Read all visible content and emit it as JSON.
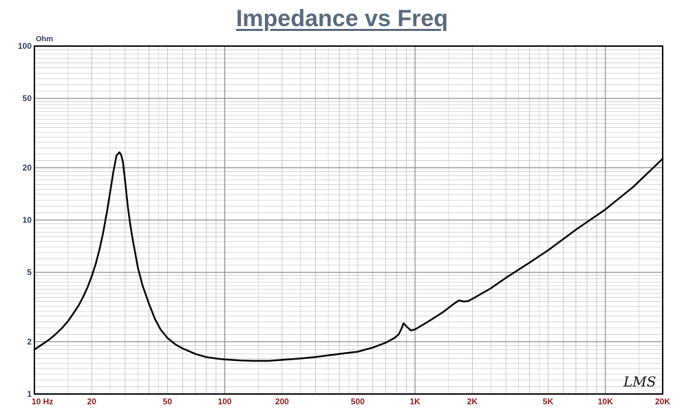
{
  "chart_data": {
    "type": "line",
    "title": "Impedance vs Freq",
    "y_unit": "Ohm",
    "x_scale": "log",
    "y_scale": "log",
    "xlim": [
      10,
      20000
    ],
    "ylim": [
      1,
      100
    ],
    "grid": true,
    "x_ticks": [
      {
        "value": 10,
        "label": "10  Hz"
      },
      {
        "value": 20,
        "label": "20"
      },
      {
        "value": 50,
        "label": "50"
      },
      {
        "value": 100,
        "label": "100"
      },
      {
        "value": 200,
        "label": "200"
      },
      {
        "value": 500,
        "label": "500"
      },
      {
        "value": 1000,
        "label": "1K"
      },
      {
        "value": 2000,
        "label": "2K"
      },
      {
        "value": 5000,
        "label": "5K"
      },
      {
        "value": 10000,
        "label": "10K"
      },
      {
        "value": 20000,
        "label": "20K"
      }
    ],
    "y_ticks": [
      {
        "value": 1,
        "label": "1"
      },
      {
        "value": 2,
        "label": "2"
      },
      {
        "value": 5,
        "label": "5"
      },
      {
        "value": 10,
        "label": "10"
      },
      {
        "value": 20,
        "label": "20"
      },
      {
        "value": 50,
        "label": "50"
      },
      {
        "value": 100,
        "label": "100"
      }
    ],
    "series": [
      {
        "color": "#000000",
        "x": [
          10,
          11,
          12,
          13,
          14,
          15,
          16,
          17,
          18,
          19,
          20,
          21,
          22,
          23,
          24,
          25,
          26,
          27,
          28,
          28.6,
          29.2,
          30,
          31,
          32,
          33,
          34,
          35,
          37,
          40,
          43,
          46,
          50,
          55,
          60,
          70,
          80,
          90,
          100,
          120,
          140,
          170,
          200,
          250,
          300,
          350,
          400,
          500,
          600,
          700,
          780,
          820,
          850,
          870,
          900,
          950,
          1000,
          1100,
          1200,
          1400,
          1600,
          1700,
          1800,
          1900,
          2000,
          2500,
          3000,
          4000,
          5000,
          7000,
          10000,
          14000,
          20000
        ],
        "y": [
          1.8,
          1.93,
          2.06,
          2.22,
          2.4,
          2.62,
          2.9,
          3.2,
          3.6,
          4.1,
          4.75,
          5.6,
          6.8,
          8.5,
          11,
          14.5,
          19,
          23.5,
          24.5,
          23.6,
          21.5,
          16.5,
          11.8,
          9.2,
          7.5,
          6.3,
          5.3,
          4.2,
          3.3,
          2.7,
          2.35,
          2.1,
          1.93,
          1.83,
          1.7,
          1.63,
          1.6,
          1.58,
          1.56,
          1.55,
          1.55,
          1.57,
          1.6,
          1.63,
          1.67,
          1.7,
          1.75,
          1.85,
          1.97,
          2.1,
          2.2,
          2.38,
          2.55,
          2.45,
          2.32,
          2.35,
          2.5,
          2.65,
          2.95,
          3.3,
          3.45,
          3.4,
          3.42,
          3.52,
          4.05,
          4.65,
          5.7,
          6.7,
          8.8,
          11.5,
          15.5,
          22.5
        ]
      }
    ],
    "watermark": "LMS"
  }
}
